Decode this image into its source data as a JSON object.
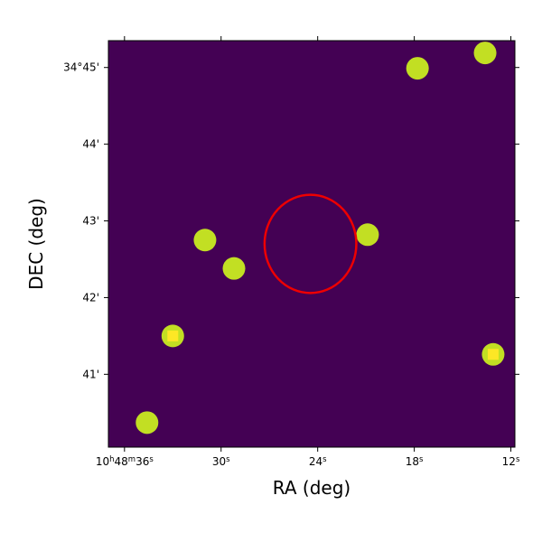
{
  "chart_data": {
    "type": "scatter",
    "title": "",
    "xlabel": "RA (deg)",
    "ylabel": "DEC (deg)",
    "xlim": [
      37,
      11.75
    ],
    "ylim": [
      40.05,
      45.35
    ],
    "grid": false,
    "x_ticks": [
      {
        "value": 36,
        "main": "10",
        "sup1": "h",
        "mid": "48",
        "sup2": "m",
        "end": "36",
        "sup3": "s"
      },
      {
        "value": 30,
        "main": "30",
        "sup1": "s"
      },
      {
        "value": 24,
        "main": "24",
        "sup1": "s"
      },
      {
        "value": 18,
        "main": "18",
        "sup1": "s"
      },
      {
        "value": 12,
        "main": "12",
        "sup1": "s"
      }
    ],
    "y_ticks": [
      {
        "value": 45,
        "label": "34°45'"
      },
      {
        "value": 44,
        "label": "44'"
      },
      {
        "value": 43,
        "label": "43'"
      },
      {
        "value": 42,
        "label": "42'"
      },
      {
        "value": 41,
        "label": "41'"
      }
    ],
    "background_color": "#440154",
    "source_color": "#c2df23",
    "marker_color": "#fde725",
    "ellipse_color": "#ee0000",
    "sources": [
      {
        "x": 17.8,
        "y": 44.99
      },
      {
        "x": 13.6,
        "y": 45.19
      },
      {
        "x": 31.0,
        "y": 42.75
      },
      {
        "x": 29.2,
        "y": 42.38
      },
      {
        "x": 20.9,
        "y": 42.82
      },
      {
        "x": 33.0,
        "y": 41.5
      },
      {
        "x": 34.6,
        "y": 40.37
      },
      {
        "x": 13.1,
        "y": 41.26
      }
    ],
    "square_markers": [
      {
        "x": 33.0,
        "y": 41.5
      },
      {
        "x": 13.1,
        "y": 41.26
      }
    ],
    "ellipse": {
      "center_x": 24.45,
      "center_y": 42.7,
      "semi_axis_ra": 2.85,
      "semi_axis_dec": 0.64
    }
  }
}
